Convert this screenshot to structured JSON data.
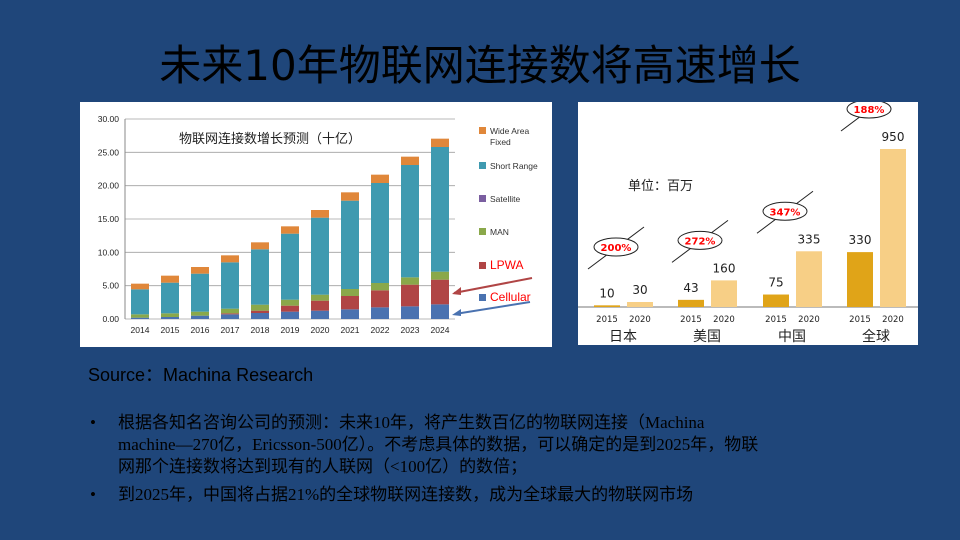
{
  "title": "未来10年物联网连接数将高速增长",
  "source": "Source：Machina Research",
  "bullets": [
    {
      "symbol": "•",
      "lines": [
        "根据各知名咨询公司的预测：未来10年，将产生数百亿的物联网连接（Machina",
        "machine—270亿，Ericsson-500亿）。不考虑具体的数据，可以确定的是到2025年，物联",
        "网那个连接数将达到现有的人联网（<100亿）的数倍；"
      ]
    },
    {
      "symbol": "•",
      "lines": [
        "到2025年，中国将占据21%的全球物联网连接数，成为全球最大的物联网市场"
      ]
    }
  ],
  "chart_data": [
    {
      "type": "bar",
      "stacked": true,
      "title": "物联网连接数增长预测（十亿）",
      "categories": [
        "2014",
        "2015",
        "2016",
        "2017",
        "2018",
        "2019",
        "2020",
        "2021",
        "2022",
        "2023",
        "2024"
      ],
      "ylim": [
        0,
        30
      ],
      "yticks": [
        "0.00",
        "5.00",
        "10.00",
        "15.00",
        "20.00",
        "25.00",
        "30.00"
      ],
      "grid": true,
      "legend": "right",
      "series": [
        {
          "name": "Cellular",
          "color": "#4a72b0",
          "values": [
            0.2,
            0.3,
            0.5,
            0.7,
            0.9,
            1.1,
            1.25,
            1.45,
            1.75,
            1.9,
            2.2
          ]
        },
        {
          "name": "LPWA",
          "color": "#b04545",
          "values": [
            0,
            0,
            0,
            0.15,
            0.35,
            0.9,
            1.5,
            2.0,
            2.55,
            3.25,
            3.7
          ]
        },
        {
          "name": "Satellite",
          "color": "#7a5ea0",
          "values": [
            0,
            0,
            0,
            0,
            0,
            0,
            0,
            0,
            0,
            0,
            0
          ]
        },
        {
          "name": "MAN",
          "color": "#8aa84a",
          "values": [
            0.5,
            0.55,
            0.6,
            0.7,
            0.9,
            0.9,
            0.9,
            1.05,
            1.1,
            1.1,
            1.2
          ]
        },
        {
          "name": "Short Range",
          "color": "#3f9ab0",
          "values": [
            3.75,
            4.6,
            5.7,
            6.95,
            8.3,
            9.9,
            11.55,
            13.25,
            15.0,
            16.85,
            18.7
          ]
        },
        {
          "name": "Wide Area Fixed",
          "color": "#e0873a",
          "values": [
            0.85,
            1.05,
            1.0,
            1.05,
            1.05,
            1.1,
            1.15,
            1.25,
            1.25,
            1.25,
            1.25
          ]
        }
      ],
      "legend_labels": [
        {
          "lines": [
            "Wide Area",
            "Fixed"
          ],
          "color": "#e0873a",
          "text_color": "#333333"
        },
        {
          "lines": [
            "Short Range"
          ],
          "color": "#3f9ab0",
          "text_color": "#333333"
        },
        {
          "lines": [
            "Satellite"
          ],
          "color": "#7a5ea0",
          "text_color": "#333333"
        },
        {
          "lines": [
            "MAN"
          ],
          "color": "#8aa84a",
          "text_color": "#333333"
        },
        {
          "lines": [
            "LPWA"
          ],
          "color": "#b04545",
          "text_color": "#ff0000"
        },
        {
          "lines": [
            "Cellular"
          ],
          "color": "#4a72b0",
          "text_color": "#ff0000"
        }
      ]
    },
    {
      "type": "bar",
      "unit_label": "单位：百万",
      "groups": [
        {
          "name": "日本",
          "years": [
            "2015",
            "2020"
          ],
          "values": [
            10,
            30
          ],
          "growth": "200%"
        },
        {
          "name": "美国",
          "years": [
            "2015",
            "2020"
          ],
          "values": [
            43,
            160
          ],
          "growth": "272%"
        },
        {
          "name": "中国",
          "years": [
            "2015",
            "2020"
          ],
          "values": [
            75,
            335
          ],
          "growth": "347%"
        },
        {
          "name": "全球",
          "years": [
            "2015",
            "2020"
          ],
          "values": [
            330,
            950
          ],
          "growth": "188%"
        }
      ],
      "colors": {
        "y2015": "#e0a418",
        "y2020": "#f7cf86",
        "growth_text": "#ff0000"
      }
    }
  ]
}
